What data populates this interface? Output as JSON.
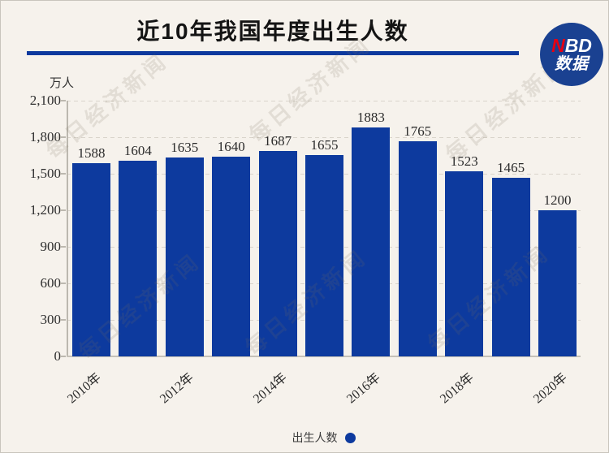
{
  "header": {
    "title": "近10年我国年度出生人数"
  },
  "logo": {
    "line1_red": "N",
    "line1_white": "BD",
    "line2": "数据"
  },
  "watermark": {
    "text": "每日经济新闻"
  },
  "legend": {
    "label": "出生人数"
  },
  "colors": {
    "accent_blue": "#0d3a9e",
    "logo_blue": "#1a4191",
    "logo_red": "#e60012",
    "background": "#f6f2ec"
  },
  "chart_data": {
    "type": "bar",
    "title": "近10年我国年度出生人数",
    "unit_label": "万人",
    "ylabel": "万人",
    "ylim": [
      0,
      2100
    ],
    "y_tick_step": 300,
    "y_tick_labels": [
      "2,100",
      "1,800",
      "1,500",
      "1,200",
      "900",
      "600",
      "300",
      "0"
    ],
    "values": [
      1588,
      1604,
      1635,
      1640,
      1687,
      1655,
      1883,
      1765,
      1523,
      1465,
      1200
    ],
    "x_tick_labels": [
      "2010年",
      "2012年",
      "2014年",
      "2016年",
      "2018年",
      "2020年"
    ],
    "x_tick_every_n_bars": 2,
    "grid": "horizontal-dashed",
    "legend_label": "出生人数",
    "legend_position": "bottom-center",
    "bar_color": "#0d3a9e"
  }
}
